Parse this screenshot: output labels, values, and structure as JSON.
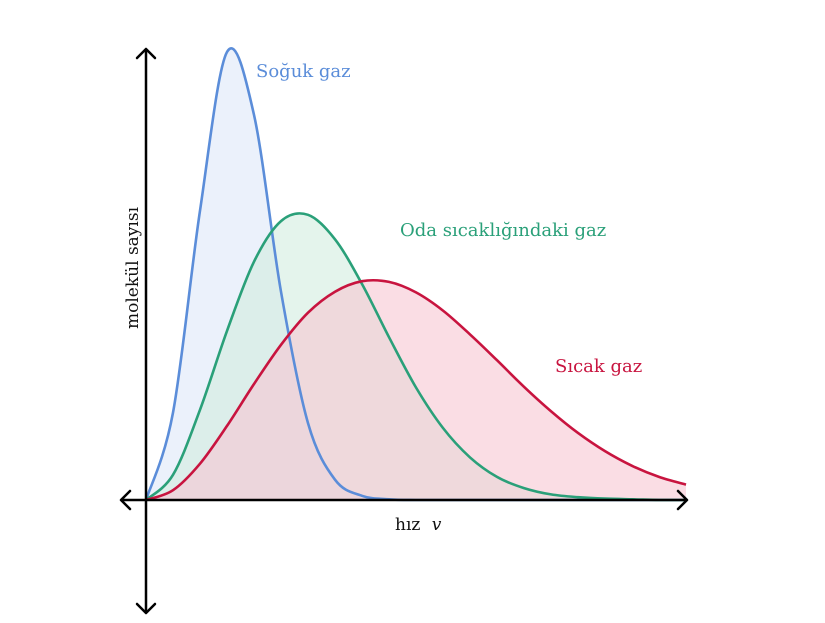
{
  "chart_data": {
    "type": "area",
    "title": "",
    "xlabel": "hız",
    "xlabel_variable": "v",
    "ylabel": "molekül sayısı",
    "xlim": [
      0,
      100
    ],
    "ylim": [
      -20,
      80
    ],
    "grid": false,
    "legend": "inline labels next to curves",
    "x": [
      0,
      5,
      10,
      15,
      20,
      25,
      30,
      35,
      40,
      45,
      50,
      55,
      60,
      65,
      70,
      75,
      80,
      85,
      90,
      95,
      100
    ],
    "series": [
      {
        "name": "Soğuk gaz",
        "color": "#5b8dd9",
        "fill": "#dde7f8",
        "values": [
          0,
          12.5,
          41.4,
          64.1,
          55.1,
          29.8,
          11.0,
          2.9,
          0.6,
          0.1,
          0,
          0,
          0,
          0,
          0,
          0,
          0,
          0,
          0,
          0,
          0
        ]
      },
      {
        "name": "Oda sıcaklığındaki gaz",
        "color": "#2aa079",
        "fill": "#d2ece0",
        "values": [
          0,
          3.6,
          12.9,
          24.2,
          34.1,
          39.9,
          40.8,
          37.3,
          30.9,
          23.3,
          16.1,
          10.3,
          6.1,
          3.3,
          1.7,
          0.8,
          0.4,
          0.2,
          0.1,
          0,
          0
        ]
      },
      {
        "name": "Sıcak gaz",
        "color": "#c8143f",
        "fill": "#f6c6d2",
        "values": [
          0,
          1.4,
          5.2,
          10.6,
          16.6,
          22.2,
          26.8,
          29.8,
          31.3,
          31.2,
          29.7,
          27.1,
          23.7,
          20.0,
          16.2,
          12.7,
          9.6,
          7.0,
          4.9,
          3.3,
          2.2
        ]
      }
    ]
  }
}
